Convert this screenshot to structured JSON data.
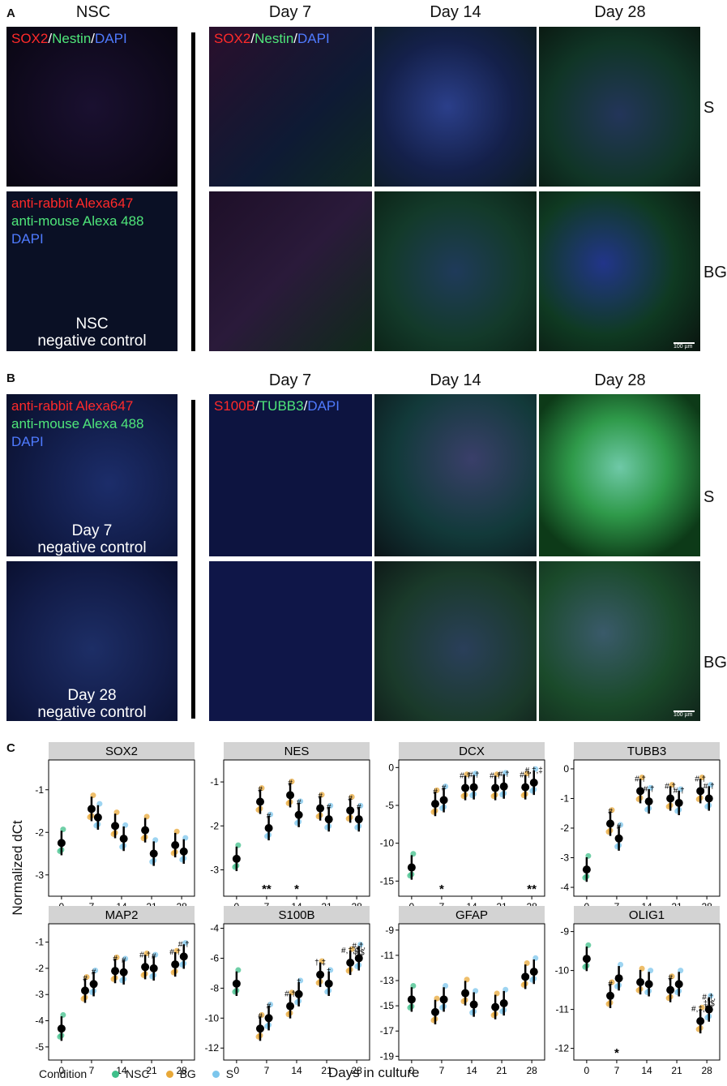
{
  "panel_a": {
    "letter": "A",
    "nsc_title": "NSC",
    "day_titles": [
      "Day 7",
      "Day 14",
      "Day 28"
    ],
    "row_labels": [
      "S",
      "BG"
    ],
    "stain_label": {
      "sox2": "SOX2",
      "nestin": "Nestin",
      "dapi": "DAPI",
      "sep": "/"
    },
    "control_lines": [
      "anti-rabbit Alexa647",
      "anti-mouse Alexa 488",
      "DAPI"
    ],
    "control_caption": [
      "NSC",
      "negative control"
    ],
    "scale": "100 µm"
  },
  "panel_b": {
    "letter": "B",
    "day_titles": [
      "Day 7",
      "Day 14",
      "Day 28"
    ],
    "row_labels": [
      "S",
      "BG"
    ],
    "stain_label": {
      "s100b": "S100B",
      "tubb3": "TUBB3",
      "dapi": "DAPI",
      "sep": "/"
    },
    "control_lines": [
      "anti-rabbit Alexa647",
      "anti-mouse Alexa 488",
      "DAPI"
    ],
    "control_caption_1": [
      "Day 7",
      "negative control"
    ],
    "control_caption_2": [
      "Day 28",
      "negative control"
    ],
    "scale": "100 µm"
  },
  "panel_c": {
    "letter": "C",
    "ylabel": "Normalized dCt",
    "xlabel": "Days in culture",
    "legend_title": "Condition",
    "legend": [
      {
        "name": "NSC",
        "color": "#3fbf8a"
      },
      {
        "name": "BG",
        "color": "#e8a838"
      },
      {
        "name": "S",
        "color": "#7cc6ec"
      }
    ]
  },
  "chart_data": [
    {
      "type": "scatter",
      "title": "SOX2",
      "x": [
        0,
        7,
        14,
        21,
        28
      ],
      "ylim": [
        -3.5,
        -0.3
      ],
      "yticks": [
        -3,
        -2,
        -1
      ],
      "means": [
        [
          0,
          -2.25
        ],
        [
          7,
          -1.45
        ],
        [
          8.5,
          -1.65
        ],
        [
          12.5,
          -1.85
        ],
        [
          14.5,
          -2.15
        ],
        [
          19.5,
          -1.95
        ],
        [
          21.5,
          -2.5
        ],
        [
          26.5,
          -2.3
        ],
        [
          28.5,
          -2.45
        ]
      ],
      "annotations": []
    },
    {
      "type": "scatter",
      "title": "NES",
      "x": [
        0,
        7,
        14,
        21,
        28
      ],
      "ylim": [
        -3.6,
        -0.5
      ],
      "yticks": [
        -3,
        -2,
        -1
      ],
      "means": [
        [
          0,
          -2.75
        ],
        [
          5.5,
          -1.45
        ],
        [
          7.5,
          -2.05
        ],
        [
          12.5,
          -1.3
        ],
        [
          14.5,
          -1.75
        ],
        [
          19.5,
          -1.6
        ],
        [
          21.5,
          -1.85
        ],
        [
          26.5,
          -1.65
        ],
        [
          28.5,
          -1.85
        ]
      ],
      "annotations": [
        {
          "x": 5.5,
          "y": -1.45,
          "t": "#"
        },
        {
          "x": 7.5,
          "y": -2.05,
          "t": "#"
        },
        {
          "x": 12.5,
          "y": -1.3,
          "t": "#"
        },
        {
          "x": 14.5,
          "y": -1.75,
          "t": "#"
        },
        {
          "x": 19.5,
          "y": -1.6,
          "t": "#"
        },
        {
          "x": 21.5,
          "y": -1.85,
          "t": "#"
        },
        {
          "x": 26.5,
          "y": -1.65,
          "t": "#"
        },
        {
          "x": 28.5,
          "y": -1.85,
          "t": "#"
        }
      ],
      "stars": [
        {
          "x": 7,
          "t": "**"
        },
        {
          "x": 14,
          "t": "*"
        }
      ]
    },
    {
      "type": "scatter",
      "title": "DCX",
      "x": [
        0,
        7,
        14,
        21,
        28
      ],
      "ylim": [
        -17,
        1
      ],
      "yticks": [
        -15,
        -10,
        -5,
        0
      ],
      "means": [
        [
          0,
          -13.2
        ],
        [
          5.5,
          -4.8
        ],
        [
          7.5,
          -4.3
        ],
        [
          12.5,
          -2.7
        ],
        [
          14.5,
          -2.6
        ],
        [
          19.5,
          -2.7
        ],
        [
          21.5,
          -2.5
        ],
        [
          26.5,
          -2.6
        ],
        [
          28.5,
          -2.0
        ]
      ],
      "annotations": [
        {
          "x": 5.5,
          "y": -4.8,
          "t": "#"
        },
        {
          "x": 7.5,
          "y": -4.3,
          "t": "#"
        },
        {
          "x": 12.5,
          "y": -2.7,
          "t": "#,†"
        },
        {
          "x": 14.5,
          "y": -2.6,
          "t": "#,†"
        },
        {
          "x": 19.5,
          "y": -2.7,
          "t": "#,†"
        },
        {
          "x": 21.5,
          "y": -2.5,
          "t": "#,†"
        },
        {
          "x": 26.5,
          "y": -2.6,
          "t": "#,†"
        },
        {
          "x": 28.5,
          "y": -2.0,
          "t": "#,†,‡"
        }
      ],
      "stars": [
        {
          "x": 7,
          "t": "*"
        },
        {
          "x": 28,
          "t": "**"
        }
      ]
    },
    {
      "type": "scatter",
      "title": "TUBB3",
      "x": [
        0,
        7,
        14,
        21,
        28
      ],
      "ylim": [
        -4.3,
        0.3
      ],
      "yticks": [
        -4,
        -3,
        -2,
        -1,
        0
      ],
      "means": [
        [
          0,
          -3.4
        ],
        [
          5.5,
          -1.85
        ],
        [
          7.5,
          -2.35
        ],
        [
          12.5,
          -0.75
        ],
        [
          14.5,
          -1.1
        ],
        [
          19.5,
          -1.0
        ],
        [
          21.5,
          -1.15
        ],
        [
          26.5,
          -0.75
        ],
        [
          28.5,
          -1.0
        ]
      ],
      "annotations": [
        {
          "x": 5.5,
          "y": -1.85,
          "t": "#"
        },
        {
          "x": 7.5,
          "y": -2.35,
          "t": "#"
        },
        {
          "x": 12.5,
          "y": -0.75,
          "t": "#,†"
        },
        {
          "x": 14.5,
          "y": -1.1,
          "t": "#,†"
        },
        {
          "x": 19.5,
          "y": -1.0,
          "t": "#,†"
        },
        {
          "x": 21.5,
          "y": -1.15,
          "t": "#,†"
        },
        {
          "x": 26.5,
          "y": -0.75,
          "t": "#,†"
        },
        {
          "x": 28.5,
          "y": -1.0,
          "t": "#,†"
        }
      ]
    },
    {
      "type": "scatter",
      "title": "MAP2",
      "x": [
        0,
        7,
        14,
        21,
        28
      ],
      "ylim": [
        -5.5,
        -0.3
      ],
      "yticks": [
        -5,
        -4,
        -3,
        -2,
        -1
      ],
      "means": [
        [
          0,
          -4.3
        ],
        [
          5.5,
          -2.85
        ],
        [
          7.5,
          -2.6
        ],
        [
          12.5,
          -2.1
        ],
        [
          14.5,
          -2.15
        ],
        [
          19.5,
          -1.95
        ],
        [
          21.5,
          -2.0
        ],
        [
          26.5,
          -1.85
        ],
        [
          28.5,
          -1.55
        ]
      ],
      "annotations": [
        {
          "x": 5.5,
          "y": -2.85,
          "t": "#"
        },
        {
          "x": 7.5,
          "y": -2.6,
          "t": "#"
        },
        {
          "x": 12.5,
          "y": -2.1,
          "t": "#"
        },
        {
          "x": 14.5,
          "y": -2.15,
          "t": "#"
        },
        {
          "x": 19.5,
          "y": -1.95,
          "t": "#,†"
        },
        {
          "x": 21.5,
          "y": -2.0,
          "t": "#"
        },
        {
          "x": 26.5,
          "y": -1.85,
          "t": "#,†"
        },
        {
          "x": 28.5,
          "y": -1.55,
          "t": "#,†"
        }
      ]
    },
    {
      "type": "scatter",
      "title": "S100B",
      "x": [
        0,
        7,
        14,
        21,
        28
      ],
      "ylim": [
        -12.8,
        -3.7
      ],
      "yticks": [
        -12,
        -10,
        -8,
        -6,
        -4
      ],
      "means": [
        [
          0,
          -7.7
        ],
        [
          5.5,
          -10.7
        ],
        [
          7.5,
          -10.0
        ],
        [
          12.5,
          -9.2
        ],
        [
          14.5,
          -8.4
        ],
        [
          19.5,
          -7.1
        ],
        [
          21.5,
          -7.7
        ],
        [
          26.5,
          -6.3
        ],
        [
          28.5,
          -6.0
        ]
      ],
      "annotations": [
        {
          "x": 5.5,
          "y": -10.7,
          "t": "#"
        },
        {
          "x": 7.5,
          "y": -10.0,
          "t": "#"
        },
        {
          "x": 12.5,
          "y": -9.2,
          "t": "#,†"
        },
        {
          "x": 14.5,
          "y": -8.4,
          "t": "†"
        },
        {
          "x": 19.5,
          "y": -7.1,
          "t": "†,‡"
        },
        {
          "x": 21.5,
          "y": -7.7,
          "t": "†"
        },
        {
          "x": 26.5,
          "y": -6.3,
          "t": "#,†,‡"
        },
        {
          "x": 28.5,
          "y": -6.0,
          "t": "#,†,"
        },
        {
          "x": 28.5,
          "y": -6.0,
          "t": "‡,$"
        }
      ]
    },
    {
      "type": "scatter",
      "title": "GFAP",
      "x": [
        0,
        7,
        14,
        21,
        28
      ],
      "ylim": [
        -19.3,
        -8.5
      ],
      "yticks": [
        -19,
        -17,
        -15,
        -13,
        -11,
        -9
      ],
      "means": [
        [
          0,
          -14.5
        ],
        [
          5.5,
          -15.5
        ],
        [
          7.5,
          -14.5
        ],
        [
          12.5,
          -14.0
        ],
        [
          14.5,
          -14.9
        ],
        [
          19.5,
          -15.1
        ],
        [
          21.5,
          -14.8
        ],
        [
          26.5,
          -12.7
        ],
        [
          28.5,
          -12.3
        ]
      ],
      "annotations": []
    },
    {
      "type": "scatter",
      "title": "OLIG1",
      "x": [
        0,
        7,
        14,
        21,
        28
      ],
      "ylim": [
        -12.3,
        -8.8
      ],
      "yticks": [
        -12,
        -11,
        -10,
        -9
      ],
      "means": [
        [
          0,
          -9.7
        ],
        [
          5.5,
          -10.65
        ],
        [
          7.5,
          -10.2
        ],
        [
          12.5,
          -10.3
        ],
        [
          14.5,
          -10.35
        ],
        [
          19.5,
          -10.5
        ],
        [
          21.5,
          -10.35
        ],
        [
          26.5,
          -11.3
        ],
        [
          28.5,
          -11.0
        ]
      ],
      "annotations": [
        {
          "x": 5.5,
          "y": -10.65,
          "t": "#"
        },
        {
          "x": 19.5,
          "y": -10.5,
          "t": "#"
        },
        {
          "x": 26.5,
          "y": -11.3,
          "t": "#,‡,$"
        },
        {
          "x": 28.5,
          "y": -11.0,
          "t": "#,†,"
        },
        {
          "x": 28.5,
          "y": -11.0,
          "t": "‡,$"
        }
      ],
      "stars": [
        {
          "x": 7,
          "t": "*"
        }
      ]
    }
  ]
}
